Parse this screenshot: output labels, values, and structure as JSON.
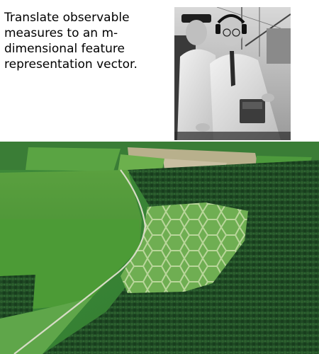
{
  "caption": {
    "text": "Translate observable measures to an m-dimensional feature representation vector."
  },
  "photo": {
    "subject": "black-and-white photo of two men with headphones and measuring equipment"
  },
  "aerial": {
    "subject": "aerial view of green fields and forest with a cell-like pattern in a clearing"
  }
}
